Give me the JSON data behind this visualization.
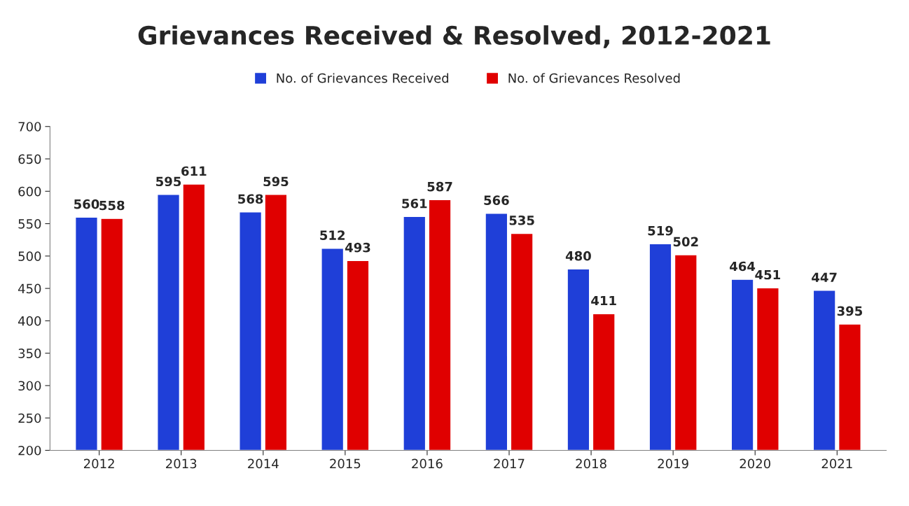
{
  "chart_data": {
    "type": "bar",
    "title": "Grievances Received & Resolved, 2012-2021",
    "categories": [
      "2012",
      "2013",
      "2014",
      "2015",
      "2016",
      "2017",
      "2018",
      "2019",
      "2020",
      "2021"
    ],
    "series": [
      {
        "name": "No. of Grievances Received",
        "color": "#1f3fd8",
        "values": [
          560,
          595,
          568,
          512,
          561,
          566,
          480,
          519,
          464,
          447
        ]
      },
      {
        "name": "No. of Grievances Resolved",
        "color": "#e00000",
        "values": [
          558,
          611,
          595,
          493,
          587,
          535,
          411,
          502,
          451,
          395
        ]
      }
    ],
    "ylim": [
      200,
      700
    ],
    "yticks": [
      200,
      250,
      300,
      350,
      400,
      450,
      500,
      550,
      600,
      650,
      700
    ],
    "data_labels": true,
    "legend": "top",
    "grid": false
  }
}
